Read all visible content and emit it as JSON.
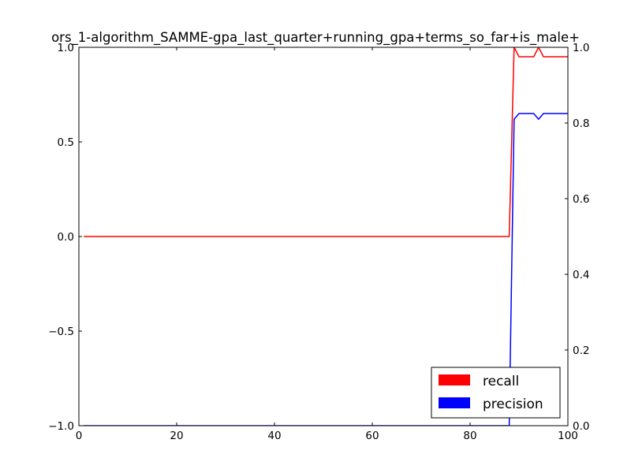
{
  "chart_data": {
    "type": "line",
    "title": "ors_1-algorithm_SAMME-gpa_last_quarter+running_gpa+terms_so_far+is_male+",
    "xlabel": "",
    "ylabel_left": "",
    "ylabel_right": "",
    "xlim": [
      0,
      100
    ],
    "ylim_left": [
      -1.0,
      1.0
    ],
    "ylim_right": [
      0.0,
      1.0
    ],
    "x_ticks": [
      "0",
      "20",
      "40",
      "60",
      "80",
      "100"
    ],
    "y_left_ticks": [
      "−1.0",
      "−0.5",
      "0.0",
      "0.5",
      "1.0"
    ],
    "y_right_ticks": [
      "0.0",
      "0.2",
      "0.4",
      "0.6",
      "0.8",
      "1.0"
    ],
    "grid": false,
    "legend_position": "lower right",
    "series": [
      {
        "name": "recall",
        "color": "#ff0000",
        "axis": "left",
        "x": [
          1,
          88,
          89,
          90,
          91,
          92,
          93,
          94,
          95,
          96,
          97,
          98,
          99,
          100
        ],
        "y": [
          0.0,
          0.0,
          1.0,
          0.95,
          0.95,
          0.95,
          0.95,
          1.0,
          0.95,
          0.95,
          0.95,
          0.95,
          0.95,
          0.95
        ]
      },
      {
        "name": "precision",
        "color": "#0000ff",
        "axis": "right",
        "x": [
          1,
          88,
          89,
          90,
          91,
          92,
          93,
          94,
          95,
          96,
          97,
          98,
          99,
          100
        ],
        "y": [
          0.0,
          0.0,
          0.81,
          0.825,
          0.825,
          0.825,
          0.825,
          0.81,
          0.825,
          0.825,
          0.825,
          0.825,
          0.825,
          0.825
        ]
      }
    ]
  }
}
